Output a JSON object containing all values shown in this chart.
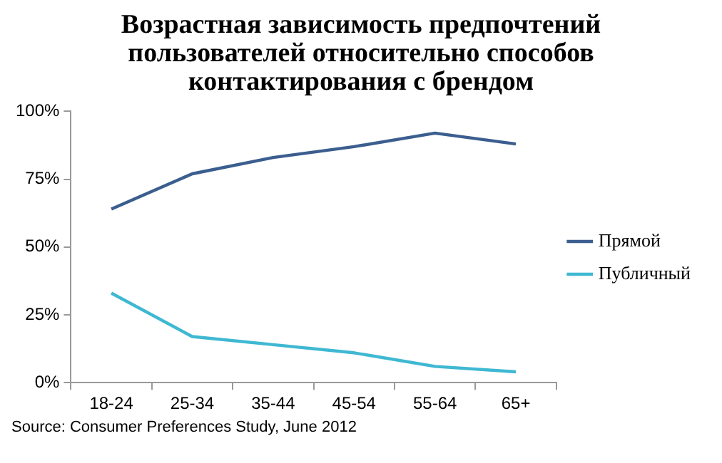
{
  "chart_data": {
    "type": "line",
    "title": "Возрастная зависимость предпочтений пользователей относительно способов контактирования с брендом",
    "categories": [
      "18-24",
      "25-34",
      "35-44",
      "45-54",
      "55-64",
      "65+"
    ],
    "series": [
      {
        "name": "Прямой",
        "color": "#3b5e8f",
        "values": [
          64,
          77,
          83,
          87,
          92,
          88
        ]
      },
      {
        "name": "Публичный",
        "color": "#3fb8d2",
        "values": [
          33,
          17,
          14,
          11,
          6,
          4
        ]
      }
    ],
    "ylim": [
      0,
      100
    ],
    "yticks": [
      {
        "value": 0,
        "label": "0%"
      },
      {
        "value": 25,
        "label": "25%"
      },
      {
        "value": 50,
        "label": "50%"
      },
      {
        "value": 75,
        "label": "75%"
      },
      {
        "value": 100,
        "label": "100%"
      }
    ],
    "grid": false,
    "legend": "right",
    "marker": "none",
    "line_style": "solid",
    "annotations": [
      "Source: Consumer Preferences Study, June 2012"
    ]
  }
}
